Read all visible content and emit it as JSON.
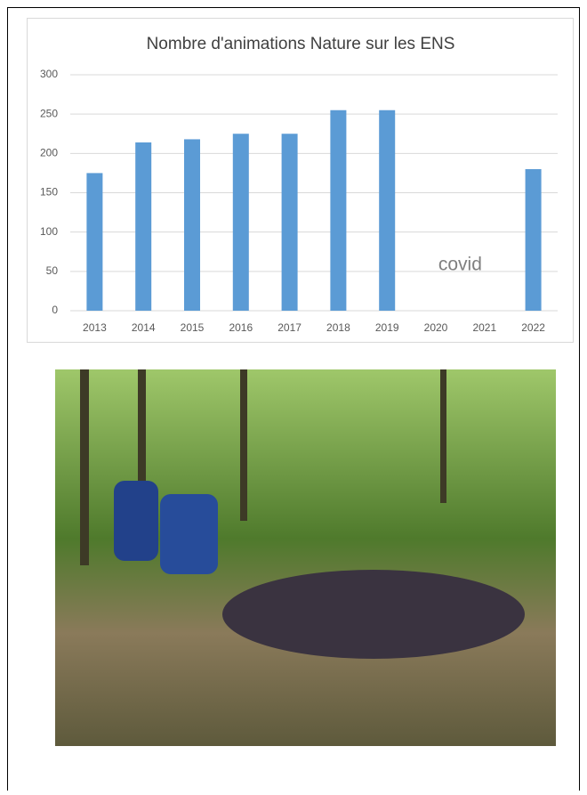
{
  "chart_data": {
    "type": "bar",
    "title": "Nombre d'animations Nature sur les ENS",
    "categories": [
      "2013",
      "2014",
      "2015",
      "2016",
      "2017",
      "2018",
      "2019",
      "2020",
      "2021",
      "2022"
    ],
    "values": [
      175,
      214,
      218,
      225,
      225,
      255,
      255,
      null,
      null,
      180
    ],
    "color": "#5b9bd5",
    "ylim": [
      0,
      300
    ],
    "yticks": [
      0,
      50,
      100,
      150,
      200,
      250,
      300
    ],
    "grid": true,
    "annotation": "covid"
  }
}
